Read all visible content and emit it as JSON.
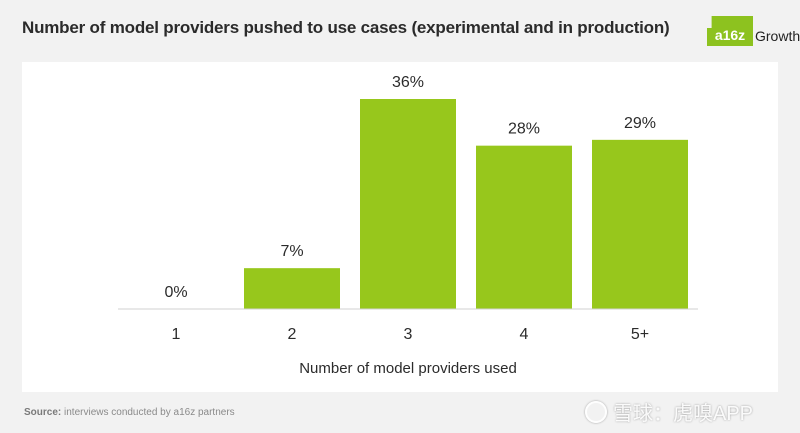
{
  "header": {
    "title": "Number of model providers pushed to use cases (experimental and in production)",
    "logo_mark": "a16z",
    "logo_word": "Growth"
  },
  "colors": {
    "bar": "#97c71c",
    "logo": "#8dc21f",
    "text": "#2b2b2b"
  },
  "chart_data": {
    "type": "bar",
    "categories": [
      "1",
      "2",
      "3",
      "4",
      "5+"
    ],
    "values": [
      0,
      7,
      36,
      28,
      29
    ],
    "value_labels": [
      "0%",
      "7%",
      "36%",
      "28%",
      "29%"
    ],
    "xlabel": "Number of model providers used",
    "ylabel": "",
    "ylim": [
      0,
      36
    ],
    "grid": false,
    "legend": "none"
  },
  "footer": {
    "source_label": "Source:",
    "source_text": "interviews conducted by a16z partners",
    "watermark": "雪球：虎嗅APP"
  }
}
